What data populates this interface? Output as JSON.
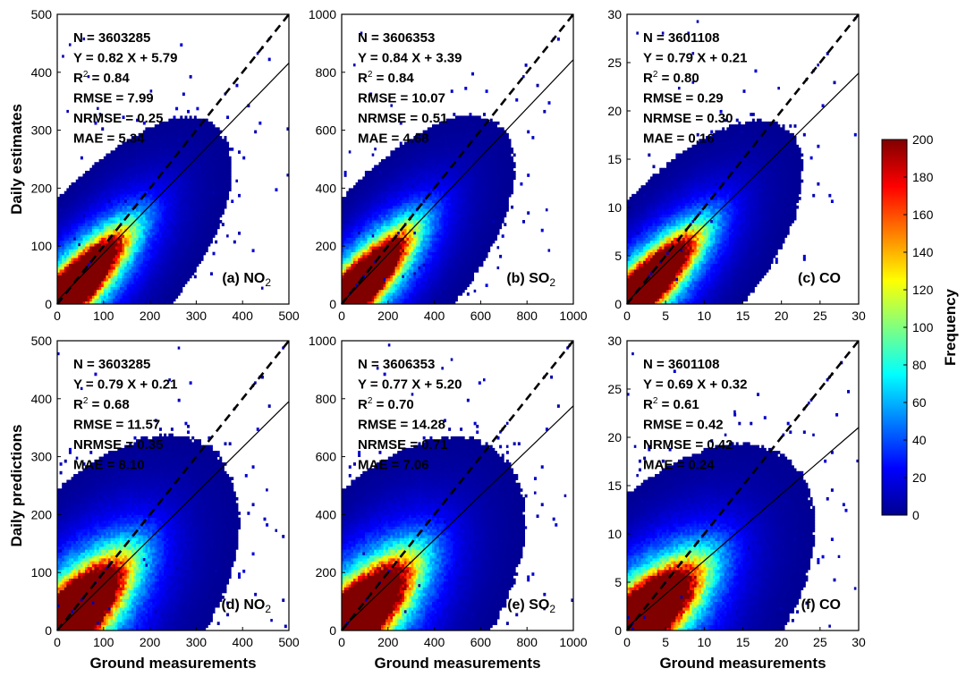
{
  "chart_data": [
    {
      "type": "heatmap",
      "panel_label": "(a) NO",
      "panel_sub": "2",
      "xlim": [
        0,
        500
      ],
      "ylim": [
        0,
        500
      ],
      "xticks": [
        "0",
        "100",
        "200",
        "300",
        "400",
        "500"
      ],
      "yticks": [
        "0",
        "100",
        "200",
        "300",
        "400",
        "500"
      ],
      "ylabel": "Daily estimates",
      "xlabel": "",
      "slope": 0.82,
      "intercept": 5.79,
      "stats": [
        "N = 3603285",
        "Y = 0.82 X + 5.79",
        "R",
        "RMSE = 7.99",
        "NRMSE = 0.25",
        "MAE = 5.34"
      ],
      "r2": " = 0.84"
    },
    {
      "type": "heatmap",
      "panel_label": "(b) SO",
      "panel_sub": "2",
      "xlim": [
        0,
        1000
      ],
      "ylim": [
        0,
        1000
      ],
      "xticks": [
        "0",
        "200",
        "400",
        "600",
        "800",
        "1000"
      ],
      "yticks": [
        "0",
        "200",
        "400",
        "600",
        "800",
        "1000"
      ],
      "ylabel": "",
      "xlabel": "",
      "slope": 0.84,
      "intercept": 3.39,
      "stats": [
        "N = 3606353",
        "Y = 0.84 X + 3.39",
        "R",
        "RMSE = 10.07",
        "NRMSE = 0.51",
        "MAE = 4.68"
      ],
      "r2": " = 0.84"
    },
    {
      "type": "heatmap",
      "panel_label": "(c) CO",
      "panel_sub": "",
      "xlim": [
        0,
        30
      ],
      "ylim": [
        0,
        30
      ],
      "xticks": [
        "0",
        "5",
        "10",
        "15",
        "20",
        "25",
        "30"
      ],
      "yticks": [
        "0",
        "5",
        "10",
        "15",
        "20",
        "25",
        "30"
      ],
      "ylabel": "",
      "xlabel": "",
      "slope": 0.79,
      "intercept": 0.21,
      "stats": [
        "N = 3601108",
        "Y = 0.79 X + 0.21",
        "R",
        "RMSE = 0.29",
        "NRMSE = 0.30",
        "MAE = 0.16"
      ],
      "r2": " = 0.80"
    },
    {
      "type": "heatmap",
      "panel_label": "(d) NO",
      "panel_sub": "2",
      "xlim": [
        0,
        500
      ],
      "ylim": [
        0,
        500
      ],
      "xticks": [
        "0",
        "100",
        "200",
        "300",
        "400",
        "500"
      ],
      "yticks": [
        "0",
        "100",
        "200",
        "300",
        "400",
        "500"
      ],
      "ylabel": "Daily predictions",
      "xlabel": "Ground measurements",
      "slope": 0.79,
      "intercept": 0.21,
      "stats": [
        "N = 3603285",
        "Y = 0.79 X + 0.21",
        "R",
        "RMSE = 11.57",
        "NRMSE = 0.35",
        "MAE = 8.10"
      ],
      "r2": " = 0.68"
    },
    {
      "type": "heatmap",
      "panel_label": "(e) SO",
      "panel_sub": "2",
      "xlim": [
        0,
        1000
      ],
      "ylim": [
        0,
        1000
      ],
      "xticks": [
        "0",
        "200",
        "400",
        "600",
        "800",
        "1000"
      ],
      "yticks": [
        "0",
        "200",
        "400",
        "600",
        "800",
        "1000"
      ],
      "ylabel": "",
      "xlabel": "Ground measurements",
      "slope": 0.77,
      "intercept": 5.2,
      "stats": [
        "N = 3606353",
        "Y = 0.77 X + 5.20",
        "R",
        "RMSE = 14.28",
        "NRMSE = 0.71",
        "MAE = 7.06"
      ],
      "r2": " = 0.70"
    },
    {
      "type": "heatmap",
      "panel_label": "(f) CO",
      "panel_sub": "",
      "xlim": [
        0,
        30
      ],
      "ylim": [
        0,
        30
      ],
      "xticks": [
        "0",
        "5",
        "10",
        "15",
        "20",
        "25",
        "30"
      ],
      "yticks": [
        "0",
        "5",
        "10",
        "15",
        "20",
        "25",
        "30"
      ],
      "ylabel": "",
      "xlabel": "Ground measurements",
      "slope": 0.69,
      "intercept": 0.32,
      "stats": [
        "N = 3601108",
        "Y = 0.69 X + 0.32",
        "R",
        "RMSE = 0.42",
        "NRMSE = 0.42",
        "MAE = 0.24"
      ],
      "r2": " = 0.61"
    }
  ],
  "colorbar": {
    "label": "Frequency",
    "ticks": [
      "0",
      "20",
      "40",
      "60",
      "80",
      "100",
      "120",
      "140",
      "160",
      "180",
      "200"
    ],
    "range": [
      0,
      200
    ],
    "colormap": "jet",
    "colors": [
      "#00008f",
      "#0000ff",
      "#0080ff",
      "#00ffff",
      "#80ff80",
      "#ffff00",
      "#ff8000",
      "#ff0000",
      "#800000"
    ]
  }
}
